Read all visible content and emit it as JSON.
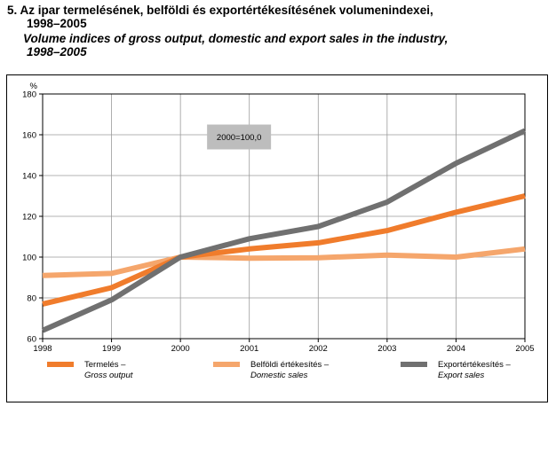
{
  "title": {
    "hu_line1": "5. Az ipar termelésének, belföldi és exportértékesítésének volumenindexei,",
    "hu_line2": "1998–2005",
    "en_line1": "Volume indices of gross output, domestic and export sales in the industry,",
    "en_line2": "1998–2005"
  },
  "chart_data": {
    "type": "line",
    "x": [
      1998,
      1999,
      2000,
      2001,
      2002,
      2003,
      2004,
      2005
    ],
    "xticklabels": [
      "1998",
      "1999",
      "2000",
      "2001",
      "2002",
      "2003",
      "2004",
      "2005"
    ],
    "ylabel": "%",
    "ylim": [
      60,
      180
    ],
    "yticks": [
      60,
      80,
      100,
      120,
      140,
      160,
      180
    ],
    "grid": true,
    "annotation": "2000=100,0",
    "legend_position": "bottom",
    "series": [
      {
        "name_hu": "Termelés –",
        "name_en": "Gross output",
        "color": "#f07c2c",
        "values": [
          77,
          85,
          100,
          104,
          107,
          113,
          122,
          130
        ]
      },
      {
        "name_hu": "Belföldi értékesítés –",
        "name_en": "Domestic sales",
        "color": "#f5a66c",
        "values": [
          91,
          92,
          100,
          99.5,
          99.7,
          101,
          100,
          104
        ]
      },
      {
        "name_hu": "Exportértékesítés –",
        "name_en": "Export sales",
        "color": "#707070",
        "values": [
          64,
          79,
          100,
          109,
          115,
          127,
          146,
          162
        ]
      }
    ]
  }
}
